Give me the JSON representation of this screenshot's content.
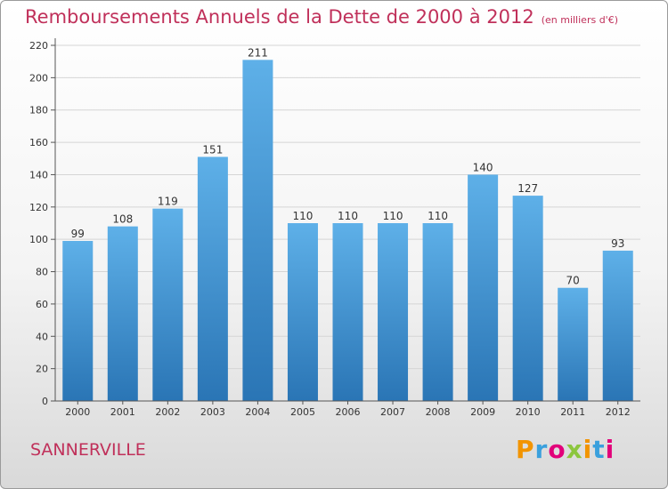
{
  "title": "Remboursements Annuels de la Dette de 2000 à 2012",
  "units_note": "(en milliers d'€)",
  "city": "SANNERVILLE",
  "logo": {
    "text": "Proxiti",
    "letter_colors": [
      "#f29400",
      "#3aa0dd",
      "#e2007a",
      "#8cc63e",
      "#f29400",
      "#3aa0dd",
      "#e2007a"
    ]
  },
  "colors": {
    "title": "#c0305a",
    "bar_top": "#5eb0e8",
    "bar_bottom": "#2a75b5",
    "axis": "#555555",
    "grid": "#d5d5d5"
  },
  "chart_data": {
    "type": "bar",
    "categories": [
      "2000",
      "2001",
      "2002",
      "2003",
      "2004",
      "2005",
      "2006",
      "2007",
      "2008",
      "2009",
      "2010",
      "2011",
      "2012"
    ],
    "values": [
      99,
      108,
      119,
      151,
      211,
      110,
      110,
      110,
      110,
      140,
      127,
      70,
      93
    ],
    "yticks": [
      0,
      20,
      40,
      60,
      80,
      100,
      120,
      140,
      160,
      180,
      200,
      220
    ],
    "ylim": [
      0,
      220
    ],
    "grid": true,
    "data_labels": true
  }
}
